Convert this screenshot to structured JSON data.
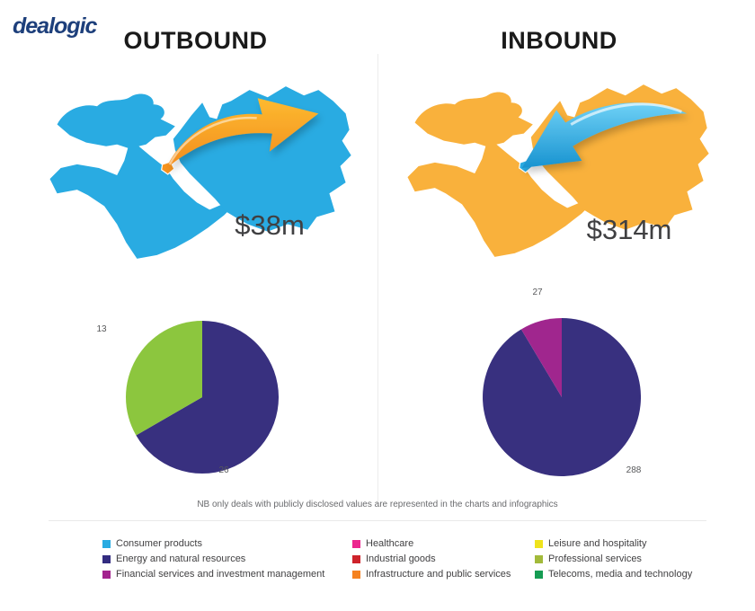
{
  "brand": {
    "logo": "dealogic",
    "logo_color": "#1d3f7b"
  },
  "note": "NB only deals with publicly disclosed values are represented in the charts and infographics",
  "columns": [
    {
      "title": "OUTBOUND",
      "value": "$38m",
      "map": {
        "region_color": "#29ABE2",
        "highlight_color": "#F7941E",
        "arrow": {
          "direction": "outbound",
          "gradient": [
            "#FDBA30",
            "#F28C1E"
          ]
        }
      }
    },
    {
      "title": "INBOUND",
      "value": "$314m",
      "map": {
        "region_color": "#F9B13C",
        "highlight_color": "#29ABE2",
        "arrow": {
          "direction": "inbound",
          "gradient": [
            "#6FD1F6",
            "#1893D0"
          ]
        }
      }
    }
  ],
  "chart_data": [
    {
      "type": "pie",
      "column": "OUTBOUND",
      "labels": [
        "Energy and natural resources",
        "Professional services"
      ],
      "values": [
        26,
        13
      ],
      "colors": [
        "#38307F",
        "#8CC63E"
      ],
      "start_angle_deg": 0,
      "direction": "clockwise",
      "value_labels_position": "outside",
      "legend_position": "bottom-shared"
    },
    {
      "type": "pie",
      "column": "INBOUND",
      "labels": [
        "Energy and natural resources",
        "Financial services and investment management"
      ],
      "values": [
        288,
        27
      ],
      "colors": [
        "#38307F",
        "#A0268E"
      ],
      "start_angle_deg": 0,
      "direction": "clockwise",
      "value_labels_position": "outside",
      "legend_position": "bottom-shared"
    }
  ],
  "legend": {
    "items": [
      {
        "label": "Consumer products",
        "color": "#29ABE2"
      },
      {
        "label": "Energy and natural resources",
        "color": "#332C80"
      },
      {
        "label": "Financial services and investment management",
        "color": "#A3238E"
      },
      {
        "label": "Healthcare",
        "color": "#EC268F"
      },
      {
        "label": "Industrial goods",
        "color": "#CE232B"
      },
      {
        "label": "Infrastructure and public services",
        "color": "#F58220"
      },
      {
        "label": "Leisure and hospitality",
        "color": "#EFE31C"
      },
      {
        "label": "Professional services",
        "color": "#A2BA3A"
      },
      {
        "label": "Telecoms, media and technology",
        "color": "#169C53"
      }
    ]
  }
}
